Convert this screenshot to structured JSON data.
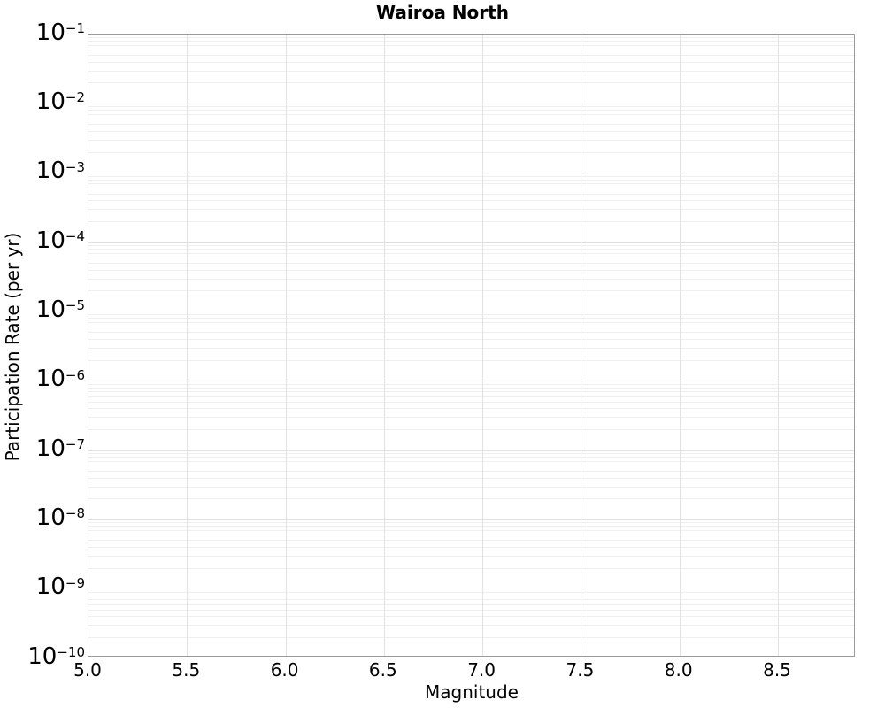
{
  "chart_data": {
    "type": "line",
    "title": "Wairoa North",
    "xlabel": "Magnitude",
    "ylabel": "Participation Rate (per yr)",
    "x_scale": "linear",
    "y_scale": "log",
    "xlim": [
      5.0,
      8.9
    ],
    "ylim": [
      1e-10,
      0.1
    ],
    "x_ticks": [
      5.0,
      5.5,
      6.0,
      6.5,
      7.0,
      7.5,
      8.0,
      8.5
    ],
    "x_tick_labels": [
      "5.0",
      "5.5",
      "6.0",
      "6.5",
      "7.0",
      "7.5",
      "8.0",
      "8.5"
    ],
    "y_tick_base": "10",
    "y_tick_exponents": [
      -1,
      -2,
      -3,
      -4,
      -5,
      -6,
      -7,
      -8,
      -9,
      -10
    ],
    "grid": {
      "major": true,
      "minor_y": true,
      "vertical_at_major_x": true
    },
    "legend": {
      "visible": false
    },
    "series": []
  },
  "colors": {
    "background": "#ffffff",
    "plot_border": "#9c9c9c",
    "grid_major": "#e0e0e0",
    "grid_minor": "#efefef",
    "text": "#000000"
  }
}
